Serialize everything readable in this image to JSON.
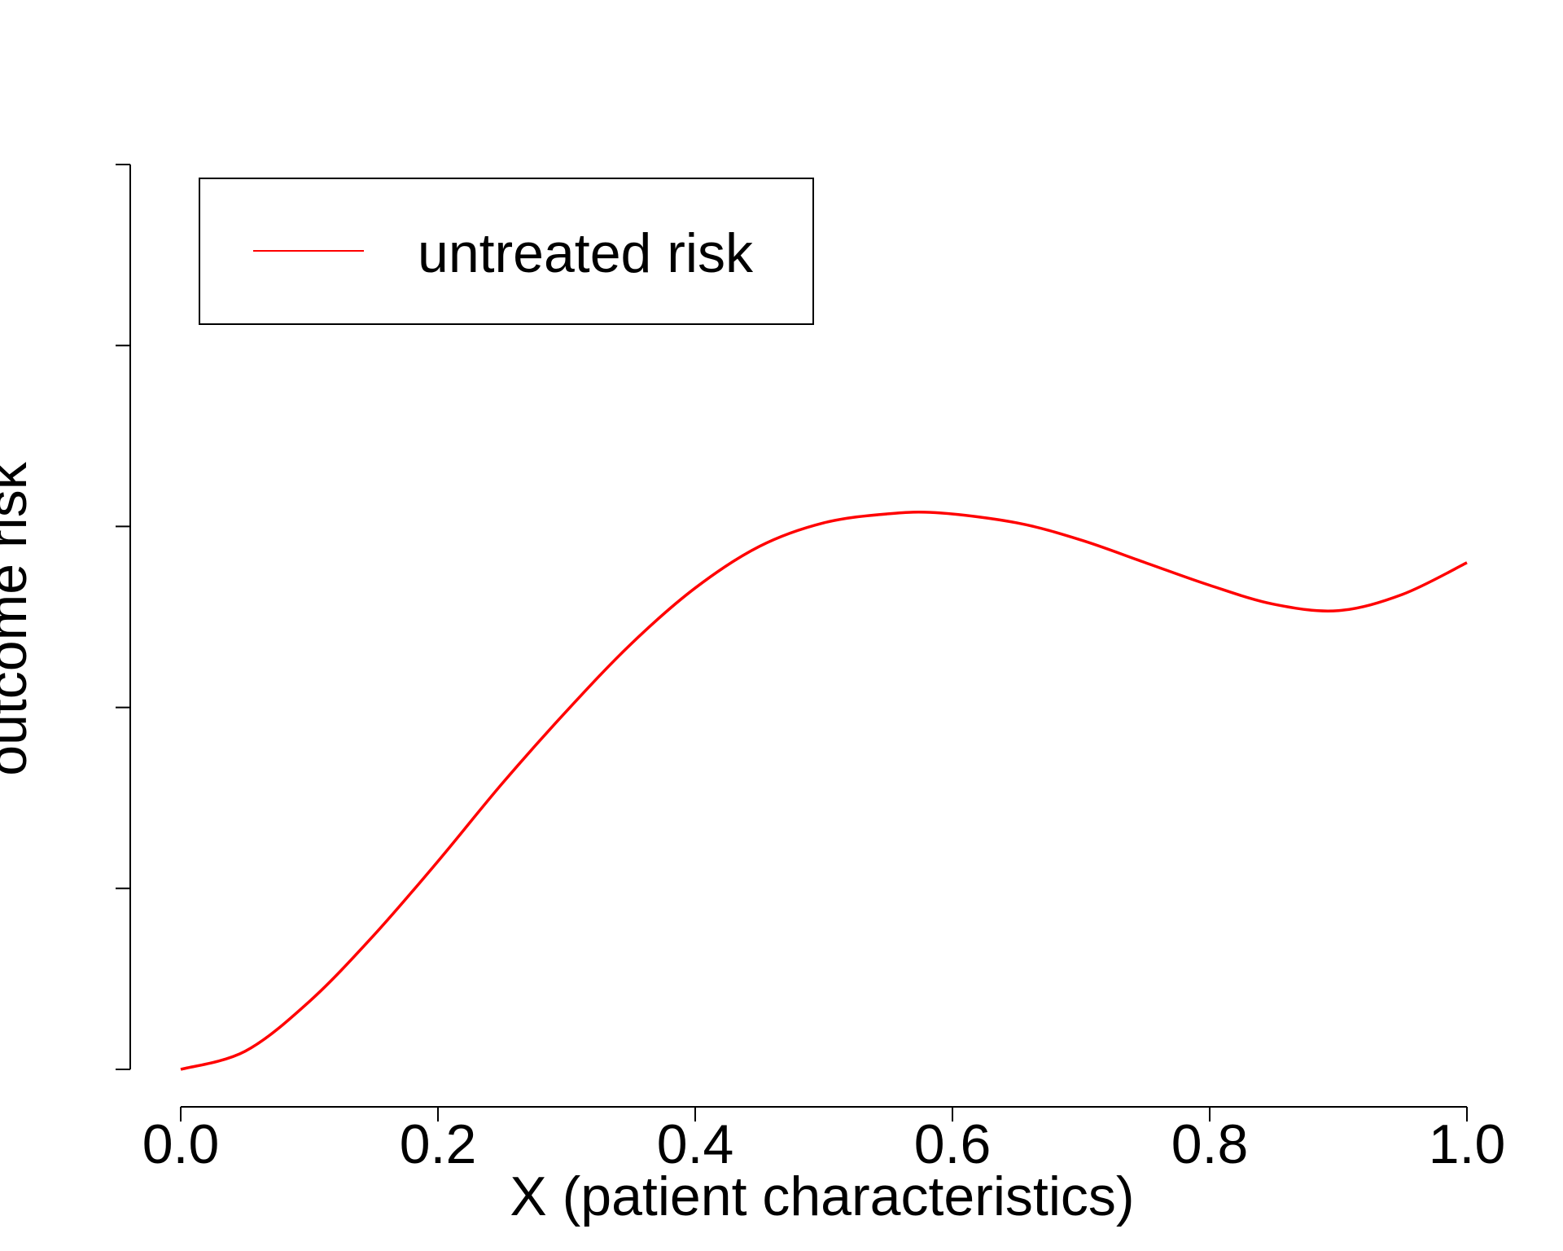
{
  "chart_data": {
    "type": "line",
    "title": "",
    "xlabel": "X (patient characteristics)",
    "ylabel": "outcome risk",
    "xlim": [
      0.0,
      1.0
    ],
    "ylim": [
      0.0,
      1.0
    ],
    "x_ticks": [
      "0.0",
      "0.2",
      "0.4",
      "0.6",
      "0.8",
      "1.0"
    ],
    "y_tick_count": 6,
    "y_tick_labels_shown": false,
    "grid": false,
    "legend": {
      "position": "top-left",
      "entries": [
        "untreated risk"
      ]
    },
    "series": [
      {
        "name": "untreated risk",
        "color": "#ff0000",
        "x": [
          0.0,
          0.05,
          0.1,
          0.15,
          0.2,
          0.25,
          0.3,
          0.35,
          0.4,
          0.45,
          0.5,
          0.55,
          0.59,
          0.65,
          0.7,
          0.75,
          0.8,
          0.85,
          0.9,
          0.95,
          1.0
        ],
        "y": [
          0.0,
          0.02,
          0.075,
          0.148,
          0.23,
          0.316,
          0.396,
          0.47,
          0.532,
          0.578,
          0.604,
          0.614,
          0.615,
          0.604,
          0.585,
          0.56,
          0.535,
          0.514,
          0.507,
          0.525,
          0.56
        ]
      }
    ]
  }
}
